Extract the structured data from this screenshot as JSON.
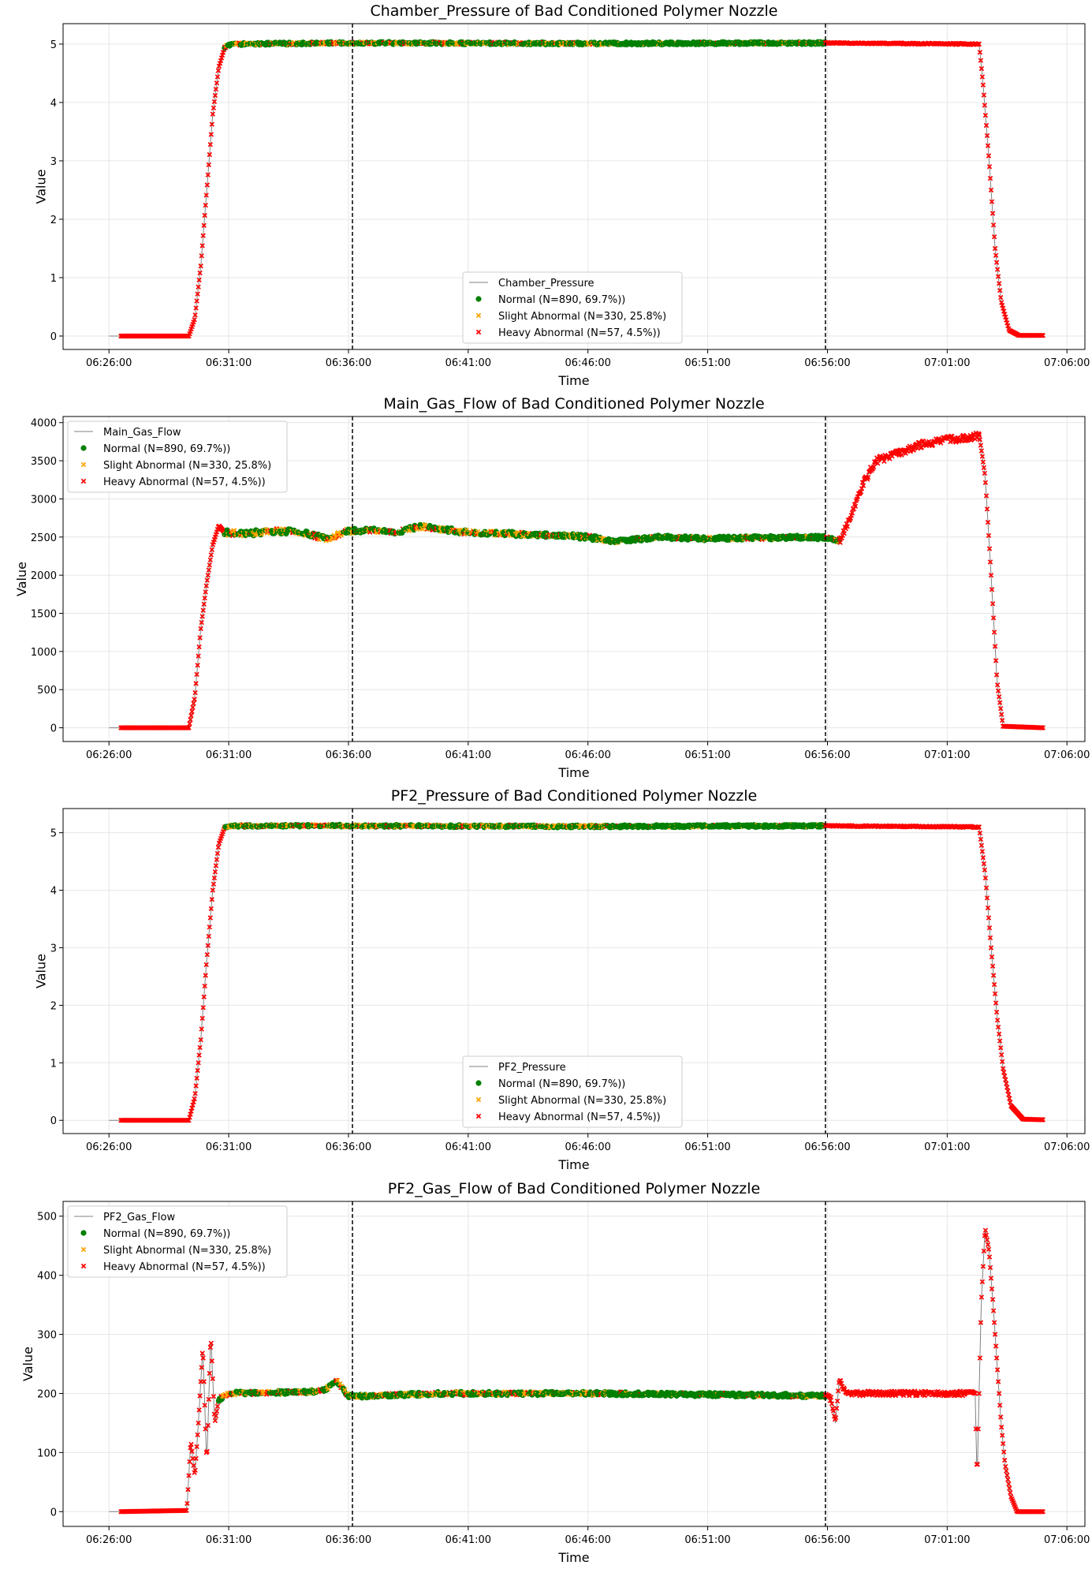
{
  "legend_labels": {
    "normal": "Normal (N=890, 69.7%))",
    "slight": "Slight Abnormal (N=330, 25.8%)",
    "heavy": "Heavy Abnormal (N=57, 4.5%))"
  },
  "colors": {
    "line": "#808080",
    "normal": "#008000",
    "slight": "#FFA500",
    "heavy": "#FF0000",
    "vline": "#000000",
    "grid": "#e6e6e6"
  },
  "chart_data": [
    {
      "type": "line",
      "title": "Chamber_Pressure of Bad Conditioned Polymer Nozzle",
      "xlabel": "Time",
      "ylabel": "Value",
      "line_label": "Chamber_Pressure",
      "legend_position": "lower-center",
      "grid": true,
      "xlim": [
        "06:24:05",
        "07:06:45"
      ],
      "ylim": [
        -0.23,
        5.35
      ],
      "x_ticks": [
        "06:26:00",
        "06:31:00",
        "06:36:00",
        "06:41:00",
        "06:46:00",
        "06:51:00",
        "06:56:00",
        "07:01:00",
        "07:06:00"
      ],
      "y_ticks": [
        0,
        1,
        2,
        3,
        4,
        5
      ],
      "vlines": [
        "06:36:10",
        "06:55:55"
      ],
      "key_points": [
        [
          "06:26:00",
          0
        ],
        [
          "06:26:30",
          0
        ],
        [
          "06:29:20",
          0
        ],
        [
          "06:29:35",
          0.3
        ],
        [
          "06:29:50",
          1.2
        ],
        [
          "06:30:05",
          2.5
        ],
        [
          "06:30:20",
          3.8
        ],
        [
          "06:30:35",
          4.6
        ],
        [
          "06:30:50",
          4.95
        ],
        [
          "06:31:10",
          5.0
        ],
        [
          "06:36:00",
          5.02
        ],
        [
          "06:46:00",
          5.01
        ],
        [
          "06:56:00",
          5.02
        ],
        [
          "07:02:20",
          5.0
        ],
        [
          "07:02:30",
          4.3
        ],
        [
          "07:02:45",
          3.0
        ],
        [
          "07:03:00",
          1.5
        ],
        [
          "07:03:15",
          0.6
        ],
        [
          "07:03:35",
          0.1
        ],
        [
          "07:04:00",
          0.01
        ],
        [
          "07:05:00",
          0.01
        ]
      ],
      "segments": [
        {
          "from": "06:26:30",
          "to": "06:30:50",
          "cls": "heavy",
          "noise": 0
        },
        {
          "from": "06:30:50",
          "to": "06:36:10",
          "cls": "mixA",
          "noise": 0.02
        },
        {
          "from": "06:36:10",
          "to": "06:47:00",
          "cls": "mixA",
          "noise": 0.02
        },
        {
          "from": "06:47:00",
          "to": "06:55:55",
          "cls": "mixB",
          "noise": 0.02
        },
        {
          "from": "06:55:55",
          "to": "07:02:20",
          "cls": "heavy",
          "noise": 0.01
        },
        {
          "from": "07:02:20",
          "to": "07:05:00",
          "cls": "heavy",
          "noise": 0
        }
      ]
    },
    {
      "type": "line",
      "title": "Main_Gas_Flow of Bad Conditioned Polymer Nozzle",
      "xlabel": "Time",
      "ylabel": "Value",
      "line_label": "Main_Gas_Flow",
      "legend_position": "upper-left",
      "grid": true,
      "xlim": [
        "06:24:05",
        "07:06:45"
      ],
      "ylim": [
        -180,
        4080
      ],
      "x_ticks": [
        "06:26:00",
        "06:31:00",
        "06:36:00",
        "06:41:00",
        "06:46:00",
        "06:51:00",
        "06:56:00",
        "07:01:00",
        "07:06:00"
      ],
      "y_ticks": [
        0,
        500,
        1000,
        1500,
        2000,
        2500,
        3000,
        3500,
        4000
      ],
      "vlines": [
        "06:36:10",
        "06:55:55"
      ],
      "key_points": [
        [
          "06:26:00",
          0
        ],
        [
          "06:26:30",
          0
        ],
        [
          "06:29:20",
          0
        ],
        [
          "06:29:35",
          400
        ],
        [
          "06:29:50",
          1300
        ],
        [
          "06:30:05",
          1900
        ],
        [
          "06:30:20",
          2400
        ],
        [
          "06:30:35",
          2650
        ],
        [
          "06:30:50",
          2560
        ],
        [
          "06:31:30",
          2540
        ],
        [
          "06:33:00",
          2580
        ],
        [
          "06:34:00",
          2560
        ],
        [
          "06:35:00",
          2480
        ],
        [
          "06:36:00",
          2580
        ],
        [
          "06:37:00",
          2590
        ],
        [
          "06:38:00",
          2560
        ],
        [
          "06:39:00",
          2640
        ],
        [
          "06:41:00",
          2560
        ],
        [
          "06:44:00",
          2530
        ],
        [
          "06:46:00",
          2500
        ],
        [
          "06:47:00",
          2440
        ],
        [
          "06:49:00",
          2500
        ],
        [
          "06:51:00",
          2480
        ],
        [
          "06:53:00",
          2490
        ],
        [
          "06:55:00",
          2500
        ],
        [
          "06:56:00",
          2490
        ],
        [
          "06:56:30",
          2450
        ],
        [
          "06:57:00",
          2800
        ],
        [
          "06:57:30",
          3200
        ],
        [
          "06:58:00",
          3500
        ],
        [
          "06:59:00",
          3600
        ],
        [
          "07:00:00",
          3720
        ],
        [
          "07:01:00",
          3780
        ],
        [
          "07:02:00",
          3800
        ],
        [
          "07:02:20",
          3850
        ],
        [
          "07:02:35",
          3300
        ],
        [
          "07:02:50",
          2000
        ],
        [
          "07:03:05",
          600
        ],
        [
          "07:03:20",
          20
        ],
        [
          "07:05:00",
          0
        ]
      ],
      "segments": [
        {
          "from": "06:26:30",
          "to": "06:30:50",
          "cls": "heavy",
          "noise": 0
        },
        {
          "from": "06:30:50",
          "to": "06:36:10",
          "cls": "mixA",
          "noise": 35
        },
        {
          "from": "06:36:10",
          "to": "06:47:00",
          "cls": "mixA",
          "noise": 30
        },
        {
          "from": "06:47:00",
          "to": "06:55:55",
          "cls": "mixB",
          "noise": 25
        },
        {
          "from": "06:55:55",
          "to": "06:56:30",
          "cls": "mixA",
          "noise": 20
        },
        {
          "from": "06:56:30",
          "to": "07:02:20",
          "cls": "heavy",
          "noise": 45
        },
        {
          "from": "07:02:20",
          "to": "07:05:00",
          "cls": "heavy",
          "noise": 0
        }
      ]
    },
    {
      "type": "line",
      "title": "PF2_Pressure of Bad Conditioned Polymer Nozzle",
      "xlabel": "Time",
      "ylabel": "Value",
      "line_label": "PF2_Pressure",
      "legend_position": "lower-center",
      "grid": true,
      "xlim": [
        "06:24:05",
        "07:06:45"
      ],
      "ylim": [
        -0.23,
        5.42
      ],
      "x_ticks": [
        "06:26:00",
        "06:31:00",
        "06:36:00",
        "06:41:00",
        "06:46:00",
        "06:51:00",
        "06:56:00",
        "07:01:00",
        "07:06:00"
      ],
      "y_ticks": [
        0,
        1,
        2,
        3,
        4,
        5
      ],
      "vlines": [
        "06:36:10",
        "06:55:55"
      ],
      "key_points": [
        [
          "06:26:00",
          0
        ],
        [
          "06:26:30",
          0
        ],
        [
          "06:29:20",
          0
        ],
        [
          "06:29:35",
          0.4
        ],
        [
          "06:29:50",
          1.4
        ],
        [
          "06:30:05",
          2.8
        ],
        [
          "06:30:20",
          4.0
        ],
        [
          "06:30:35",
          4.8
        ],
        [
          "06:30:50",
          5.1
        ],
        [
          "06:31:10",
          5.12
        ],
        [
          "06:36:00",
          5.12
        ],
        [
          "06:46:00",
          5.11
        ],
        [
          "06:56:00",
          5.12
        ],
        [
          "07:02:20",
          5.1
        ],
        [
          "07:02:35",
          4.3
        ],
        [
          "07:02:50",
          3.0
        ],
        [
          "07:03:05",
          1.8
        ],
        [
          "07:03:20",
          0.9
        ],
        [
          "07:03:40",
          0.25
        ],
        [
          "07:04:10",
          0.02
        ],
        [
          "07:05:00",
          0.01
        ]
      ],
      "segments": [
        {
          "from": "06:26:30",
          "to": "06:30:50",
          "cls": "heavy",
          "noise": 0
        },
        {
          "from": "06:30:50",
          "to": "06:36:10",
          "cls": "mixA",
          "noise": 0.02
        },
        {
          "from": "06:36:10",
          "to": "06:47:00",
          "cls": "mixA",
          "noise": 0.02
        },
        {
          "from": "06:47:00",
          "to": "06:55:55",
          "cls": "mixB",
          "noise": 0.02
        },
        {
          "from": "06:55:55",
          "to": "07:02:20",
          "cls": "heavy",
          "noise": 0.01
        },
        {
          "from": "07:02:20",
          "to": "07:05:00",
          "cls": "heavy",
          "noise": 0
        }
      ]
    },
    {
      "type": "line",
      "title": "PF2_Gas_Flow of Bad Conditioned Polymer Nozzle",
      "xlabel": "Time",
      "ylabel": "Value",
      "line_label": "PF2_Gas_Flow",
      "legend_position": "upper-left",
      "grid": true,
      "xlim": [
        "06:24:05",
        "07:06:45"
      ],
      "ylim": [
        -25,
        525
      ],
      "x_ticks": [
        "06:26:00",
        "06:31:00",
        "06:36:00",
        "06:41:00",
        "06:46:00",
        "06:51:00",
        "06:56:00",
        "07:01:00",
        "07:06:00"
      ],
      "y_ticks": [
        0,
        100,
        200,
        300,
        400,
        500
      ],
      "vlines": [
        "06:36:10",
        "06:55:55"
      ],
      "key_points": [
        [
          "06:26:00",
          0
        ],
        [
          "06:26:30",
          0
        ],
        [
          "06:29:15",
          2
        ],
        [
          "06:29:25",
          120
        ],
        [
          "06:29:35",
          60
        ],
        [
          "06:29:45",
          160
        ],
        [
          "06:29:55",
          280
        ],
        [
          "06:30:05",
          80
        ],
        [
          "06:30:15",
          300
        ],
        [
          "06:30:25",
          150
        ],
        [
          "06:30:35",
          190
        ],
        [
          "06:31:00",
          200
        ],
        [
          "06:34:00",
          202
        ],
        [
          "06:35:00",
          205
        ],
        [
          "06:35:30",
          222
        ],
        [
          "06:36:00",
          195
        ],
        [
          "06:40:00",
          200
        ],
        [
          "06:46:00",
          200
        ],
        [
          "06:51:00",
          198
        ],
        [
          "06:55:55",
          196
        ],
        [
          "06:56:10",
          190
        ],
        [
          "06:56:20",
          150
        ],
        [
          "06:56:30",
          225
        ],
        [
          "06:56:45",
          200
        ],
        [
          "06:58:00",
          200
        ],
        [
          "07:02:10",
          200
        ],
        [
          "07:02:15",
          50
        ],
        [
          "07:02:25",
          350
        ],
        [
          "07:02:35",
          480
        ],
        [
          "07:02:45",
          440
        ],
        [
          "07:02:55",
          350
        ],
        [
          "07:03:05",
          250
        ],
        [
          "07:03:15",
          150
        ],
        [
          "07:03:25",
          80
        ],
        [
          "07:03:40",
          25
        ],
        [
          "07:03:55",
          0
        ],
        [
          "07:05:00",
          0
        ]
      ],
      "segments": [
        {
          "from": "06:26:30",
          "to": "06:30:35",
          "cls": "heavy",
          "noise": 0
        },
        {
          "from": "06:30:35",
          "to": "06:36:10",
          "cls": "mixA",
          "noise": 3
        },
        {
          "from": "06:36:10",
          "to": "06:47:00",
          "cls": "mixA",
          "noise": 3
        },
        {
          "from": "06:47:00",
          "to": "06:55:55",
          "cls": "mixB",
          "noise": 3
        },
        {
          "from": "06:55:55",
          "to": "07:02:10",
          "cls": "heavy",
          "noise": 4
        },
        {
          "from": "07:02:10",
          "to": "07:05:00",
          "cls": "heavy",
          "noise": 0
        }
      ]
    }
  ]
}
